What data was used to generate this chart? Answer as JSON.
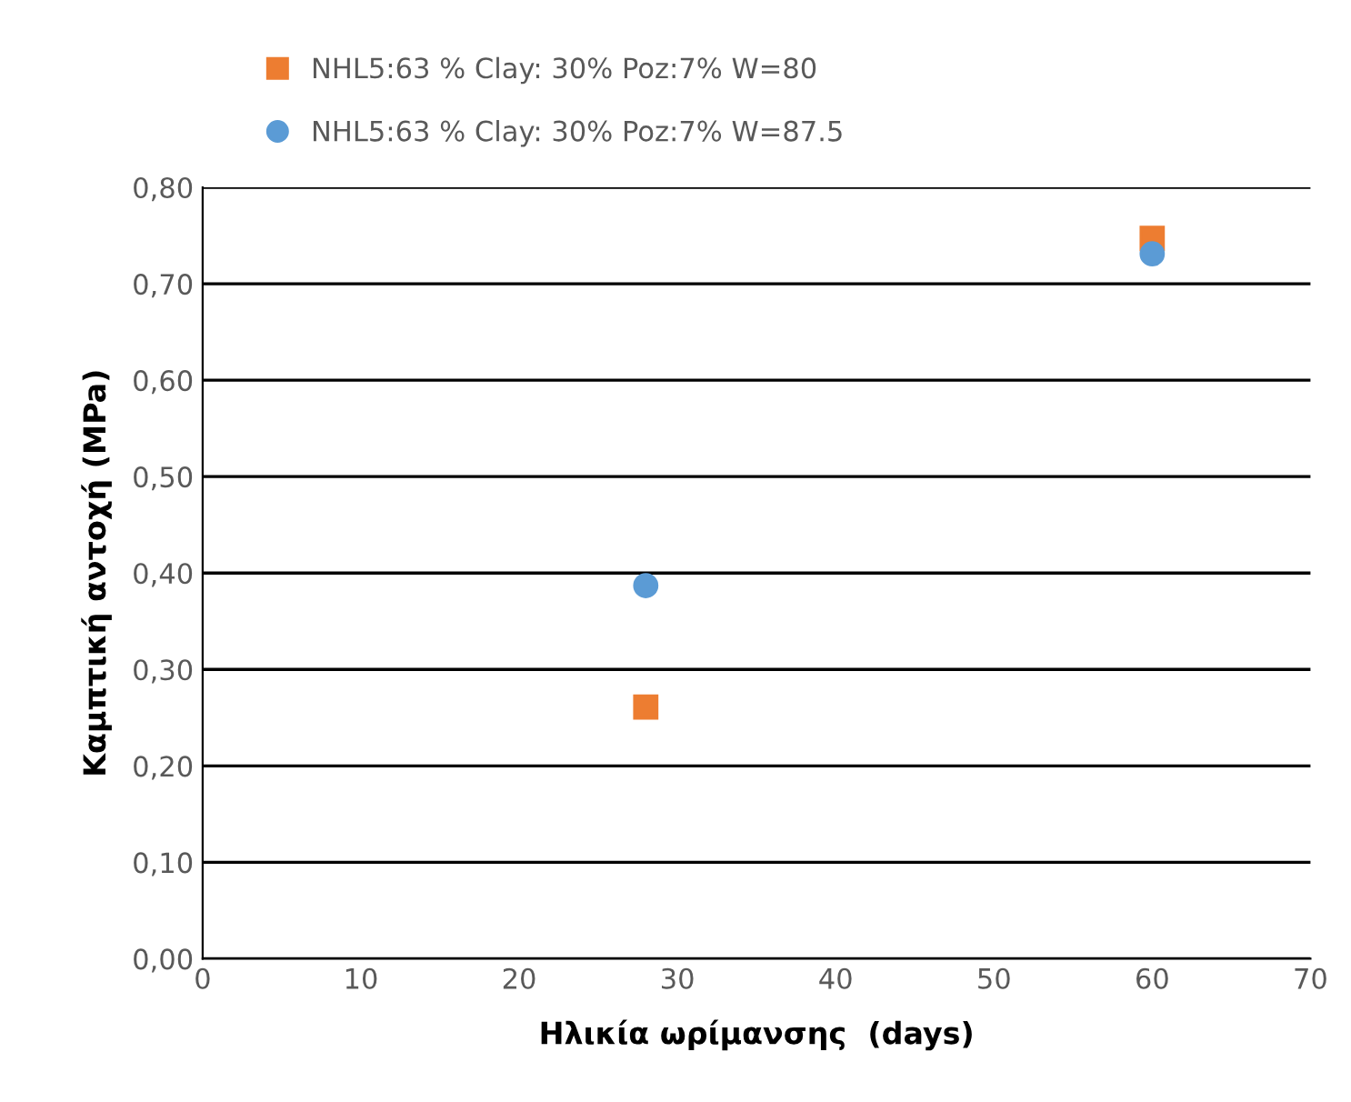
{
  "chart_data": {
    "type": "scatter",
    "xlabel": "Ηλικία ωρίμανσης  (days)",
    "ylabel": "Καμπτική αντοχή (MPa)",
    "series": [
      {
        "name": "NHL5:63 % Clay: 30% Poz:7% W=80",
        "color": "#ed7d31",
        "marker": "square",
        "values": [
          0.261,
          0.747
        ]
      },
      {
        "name": "NHL5:63 % Clay: 30% Poz:7% W=87.5",
        "color": "#5b9bd5",
        "marker": "circle",
        "values": [
          0.387,
          0.731
        ]
      }
    ],
    "x": [
      28,
      60
    ],
    "xlim": [
      0,
      70
    ],
    "xticks": [
      0,
      10,
      20,
      30,
      40,
      50,
      60,
      70
    ],
    "ylim": [
      0,
      0.8
    ],
    "yticks": [
      {
        "value": 0,
        "label": "0,00"
      },
      {
        "value": 0.1,
        "label": "0,10"
      },
      {
        "value": 0.2,
        "label": "0,20"
      },
      {
        "value": 0.3,
        "label": "0,30"
      },
      {
        "value": 0.4,
        "label": "0,40"
      },
      {
        "value": 0.5,
        "label": "0,50"
      },
      {
        "value": 0.6,
        "label": "0,60"
      },
      {
        "value": 0.7,
        "label": "0,70"
      },
      {
        "value": 0.8,
        "label": "0,80"
      }
    ],
    "grid": "y",
    "legend": "top left"
  }
}
